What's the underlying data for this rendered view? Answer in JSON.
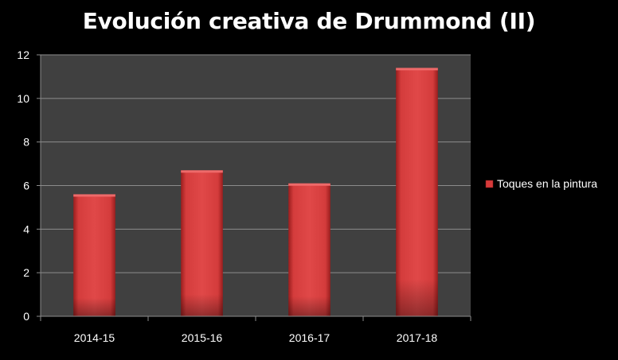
{
  "chart_data": {
    "type": "bar",
    "title": "Evolución creativa de Drummond (II)",
    "categories": [
      "2014-15",
      "2015-16",
      "2016-17",
      "2017-18"
    ],
    "series": [
      {
        "name": "Toques en la pintura",
        "values": [
          5.6,
          6.7,
          6.1,
          11.4
        ],
        "color": "#d63a3a"
      }
    ],
    "ylim": [
      0,
      12
    ],
    "yticks": [
      0,
      2,
      4,
      6,
      8,
      10,
      12
    ],
    "xlabel": "",
    "ylabel": "",
    "grid": true,
    "legend": "right",
    "plot_background": "#404040",
    "page_background": "#000000",
    "text_color": "#ffffff"
  }
}
